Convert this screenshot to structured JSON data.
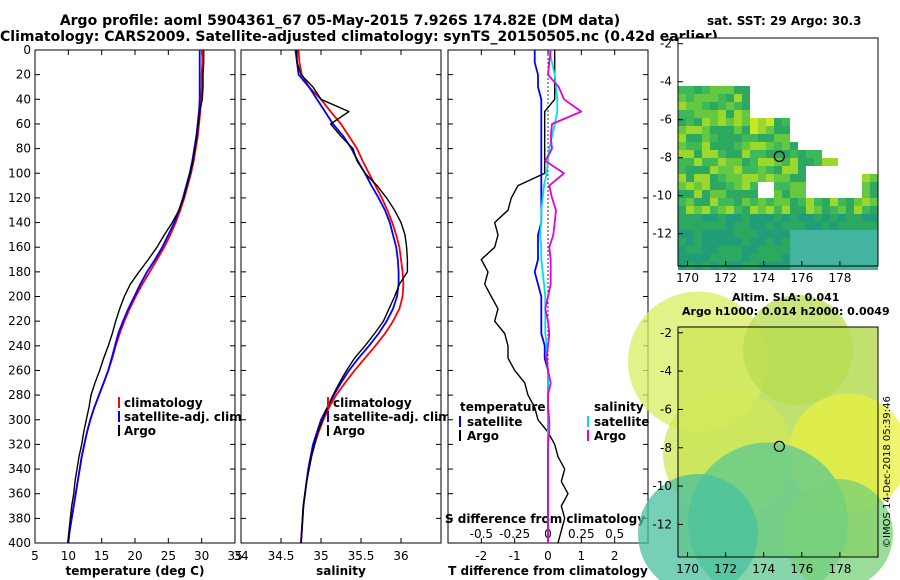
{
  "header": {
    "line1": "Argo profile: aoml 5904361_67 05-May-2015 7.926S 174.82E (DM data)",
    "line2": "Climatology: CARS2009. Satellite-adjusted climatology: synTS_20150505.nc (0.42d earlier)"
  },
  "colors": {
    "climatology": "#ff0000",
    "satellite": "#0000ff",
    "argo": "#000000",
    "s_satellite": "#00e0e0",
    "s_argo": "#e000e0"
  },
  "chart_data": [
    {
      "type": "line",
      "name": "temperature",
      "xlabel": "temperature (deg C)",
      "ylabel": "",
      "xlim": [
        5,
        35
      ],
      "ylim": [
        400,
        0
      ],
      "xticks": [
        "5",
        "10",
        "15",
        "20",
        "25",
        "30",
        "35"
      ],
      "yticks": [
        "0",
        "20",
        "40",
        "60",
        "80",
        "100",
        "120",
        "140",
        "160",
        "180",
        "200",
        "220",
        "240",
        "260",
        "280",
        "300",
        "320",
        "340",
        "360",
        "380",
        "400"
      ],
      "legend": [
        "climatology",
        "satellite-adj. clim.",
        "Argo"
      ],
      "depth": [
        0,
        10,
        20,
        30,
        40,
        50,
        60,
        70,
        80,
        90,
        100,
        110,
        120,
        130,
        140,
        150,
        160,
        170,
        180,
        190,
        200,
        210,
        220,
        230,
        240,
        250,
        260,
        270,
        280,
        290,
        300,
        310,
        320,
        330,
        340,
        350,
        360,
        370,
        380,
        390,
        400
      ],
      "series": [
        {
          "name": "climatology",
          "values": [
            30.1,
            30.1,
            30.0,
            30.0,
            29.9,
            29.8,
            29.6,
            29.4,
            29.1,
            28.8,
            28.4,
            27.9,
            27.4,
            26.8,
            26.1,
            25.3,
            24.4,
            23.3,
            22.2,
            21.1,
            20.1,
            19.2,
            18.4,
            17.7,
            17.1,
            16.6,
            16.0,
            15.3,
            14.6,
            13.9,
            13.3,
            12.8,
            12.4,
            12.0,
            11.7,
            11.4,
            11.1,
            10.8,
            10.5,
            10.2,
            10.0
          ]
        },
        {
          "name": "satellite",
          "values": [
            29.7,
            29.7,
            29.7,
            29.7,
            29.7,
            29.6,
            29.4,
            29.2,
            28.9,
            28.6,
            28.2,
            27.7,
            27.2,
            26.6,
            25.9,
            25.0,
            24.1,
            23.0,
            21.8,
            20.8,
            19.9,
            19.0,
            18.2,
            17.5,
            17.0,
            16.5,
            16.0,
            15.3,
            14.6,
            13.9,
            13.3,
            12.8,
            12.4,
            12.0,
            11.7,
            11.4,
            11.1,
            10.8,
            10.5,
            10.2,
            10.0
          ]
        },
        {
          "name": "Argo",
          "values": [
            30.3,
            30.3,
            30.2,
            30.2,
            30.1,
            29.7,
            29.5,
            29.3,
            29.0,
            28.7,
            28.3,
            27.8,
            27.3,
            26.6,
            25.6,
            24.4,
            23.3,
            22.0,
            20.6,
            19.3,
            18.4,
            17.7,
            17.1,
            16.6,
            16.0,
            15.3,
            14.7,
            14.0,
            13.4,
            13.1,
            12.7,
            12.3,
            12.0,
            11.6,
            11.3,
            11.0,
            10.8,
            10.5,
            10.3,
            10.1,
            9.9
          ]
        }
      ]
    },
    {
      "type": "line",
      "name": "salinity",
      "xlabel": "salinity",
      "xlim": [
        34,
        36.5
      ],
      "ylim": [
        400,
        0
      ],
      "xticks": [
        "34",
        "34.5",
        "35",
        "35.5",
        "36"
      ],
      "legend": [
        "climatology",
        "satellite-adj. clim.",
        "Argo"
      ],
      "depth": [
        0,
        10,
        20,
        30,
        40,
        50,
        60,
        70,
        80,
        90,
        100,
        110,
        120,
        130,
        140,
        150,
        160,
        170,
        180,
        190,
        200,
        210,
        220,
        230,
        240,
        250,
        260,
        270,
        280,
        290,
        300,
        310,
        320,
        330,
        340,
        350,
        360,
        370,
        380,
        390,
        400
      ],
      "series": [
        {
          "name": "climatology",
          "values": [
            34.72,
            34.73,
            34.76,
            34.85,
            35.0,
            35.12,
            35.25,
            35.35,
            35.45,
            35.52,
            35.6,
            35.68,
            35.76,
            35.83,
            35.89,
            35.94,
            35.98,
            36.0,
            36.02,
            36.03,
            36.02,
            35.98,
            35.9,
            35.8,
            35.68,
            35.55,
            35.42,
            35.3,
            35.19,
            35.1,
            35.03,
            34.97,
            34.92,
            34.88,
            34.85,
            34.82,
            34.8,
            34.78,
            34.77,
            34.76,
            34.75
          ]
        },
        {
          "name": "satellite",
          "values": [
            34.68,
            34.7,
            34.72,
            34.85,
            34.95,
            35.05,
            35.15,
            35.28,
            35.38,
            35.46,
            35.55,
            35.63,
            35.72,
            35.8,
            35.86,
            35.9,
            35.94,
            35.96,
            35.97,
            35.97,
            35.95,
            35.9,
            35.82,
            35.72,
            35.6,
            35.47,
            35.35,
            35.25,
            35.16,
            35.08,
            35.0,
            34.95,
            34.9,
            34.87,
            34.84,
            34.82,
            34.8,
            34.78,
            34.77,
            34.76,
            34.75
          ]
        },
        {
          "name": "Argo",
          "values": [
            34.7,
            34.7,
            34.75,
            34.9,
            35.0,
            35.35,
            35.12,
            35.25,
            35.4,
            35.45,
            35.55,
            35.7,
            35.82,
            35.92,
            36.0,
            36.05,
            36.07,
            36.08,
            36.08,
            35.98,
            35.92,
            35.85,
            35.78,
            35.67,
            35.55,
            35.42,
            35.32,
            35.23,
            35.15,
            35.08,
            35.02,
            34.96,
            34.92,
            34.88,
            34.85,
            34.82,
            34.8,
            34.78,
            34.77,
            34.76,
            34.75
          ]
        }
      ]
    },
    {
      "type": "line",
      "name": "difference",
      "title_top": "S difference from climatology",
      "xlabel": "T difference from climatology",
      "xlim": [
        -3,
        3
      ],
      "ylim": [
        400,
        0
      ],
      "xticks": [
        "-2",
        "-1",
        "0",
        "1",
        "2"
      ],
      "top_xticks": [
        "-0.5",
        "-0.25",
        "0",
        "0.25",
        "0.5"
      ],
      "legend_t_title": "temperature",
      "legend_s_title": "salinity",
      "legend_t": [
        "satellite",
        "Argo"
      ],
      "legend_s": [
        "satellite",
        "Argo"
      ],
      "depth": [
        0,
        10,
        20,
        30,
        40,
        50,
        60,
        70,
        80,
        90,
        100,
        110,
        120,
        130,
        140,
        150,
        160,
        170,
        180,
        190,
        200,
        210,
        220,
        230,
        240,
        250,
        260,
        270,
        280,
        290,
        300,
        310,
        320,
        330,
        340,
        350,
        360,
        370,
        380,
        390,
        400
      ],
      "series": [
        {
          "name": "T satellite",
          "values": [
            -0.4,
            -0.4,
            -0.3,
            -0.3,
            -0.2,
            -0.2,
            -0.2,
            -0.2,
            -0.2,
            -0.2,
            -0.2,
            -0.2,
            -0.2,
            -0.2,
            -0.2,
            -0.3,
            -0.3,
            -0.3,
            -0.4,
            -0.3,
            -0.2,
            -0.2,
            -0.2,
            -0.2,
            -0.1,
            -0.1,
            0.0,
            0.0,
            0.0,
            0.0,
            0.0,
            0.0,
            0.0,
            0.0,
            0.0,
            0.0,
            0.0,
            0.0,
            0.0,
            0.0,
            0.0
          ]
        },
        {
          "name": "T Argo",
          "values": [
            0.2,
            0.2,
            0.2,
            0.2,
            0.2,
            -0.1,
            -0.1,
            -0.1,
            -0.1,
            -0.1,
            -0.1,
            -0.9,
            -1.1,
            -1.2,
            -1.6,
            -1.5,
            -1.6,
            -2.0,
            -1.8,
            -1.9,
            -1.7,
            -1.5,
            -1.6,
            -1.3,
            -1.2,
            -1.2,
            -1.0,
            -0.7,
            -0.6,
            -0.4,
            -0.3,
            0.0,
            0.2,
            0.3,
            0.5,
            0.4,
            0.6,
            0.4,
            0.5,
            0.4,
            0.3
          ]
        },
        {
          "name": "S satellite",
          "values": [
            0.01,
            0.03,
            0.05,
            0.06,
            0.07,
            0.07,
            0.05,
            0.03,
            0.01,
            0.0,
            -0.01,
            -0.03,
            -0.04,
            -0.05,
            -0.05,
            -0.06,
            -0.05,
            -0.05,
            -0.04,
            -0.03,
            -0.02,
            -0.02,
            -0.02,
            -0.02,
            -0.01,
            -0.01,
            0.0,
            0.0,
            0.0,
            0.0,
            0.0,
            0.0,
            0.0,
            0.0,
            0.0,
            0.0,
            0.0,
            0.0,
            0.0,
            0.0,
            0.0
          ]
        },
        {
          "name": "S Argo",
          "values": [
            0.02,
            0.01,
            0.0,
            0.08,
            0.12,
            0.25,
            0.03,
            0.02,
            0.03,
            -0.02,
            0.12,
            0.01,
            0.03,
            0.06,
            0.05,
            0.04,
            0.01,
            0.02,
            0.02,
            0.02,
            0.0,
            -0.02,
            0.0,
            0.01,
            0.0,
            -0.01,
            0.0,
            0.02,
            0.0,
            0.0,
            0.01,
            0.01,
            0.0,
            0.0,
            0.0,
            0.0,
            0.0,
            0.0,
            0.0,
            0.0,
            0.0
          ]
        }
      ]
    },
    {
      "type": "heatmap",
      "name": "sst_map",
      "title": "sat. SST: 29 Argo: 30.3",
      "xticks": [
        "170",
        "172",
        "174",
        "176",
        "178"
      ],
      "yticks": [
        "-2",
        "-4",
        "-6",
        "-8",
        "-10",
        "-12"
      ],
      "xlim": [
        169.5,
        180
      ],
      "ylim": [
        -13.7,
        -1.7
      ],
      "marker": {
        "lon": 174.82,
        "lat": -7.93
      }
    },
    {
      "type": "heatmap",
      "name": "sla_map",
      "title_line1": "Altim. SLA: 0.041",
      "title_line2": "Argo h1000: 0.014 h2000: 0.0049",
      "xticks": [
        "170",
        "172",
        "174",
        "176",
        "178"
      ],
      "yticks": [
        "-2",
        "-4",
        "-6",
        "-8",
        "-10",
        "-12"
      ],
      "xlim": [
        169.5,
        180
      ],
      "ylim": [
        -13.7,
        -1.7
      ],
      "marker": {
        "lon": 174.82,
        "lat": -7.93
      }
    }
  ],
  "credit": "©IMOS 14-Dec-2018 05:39:46"
}
